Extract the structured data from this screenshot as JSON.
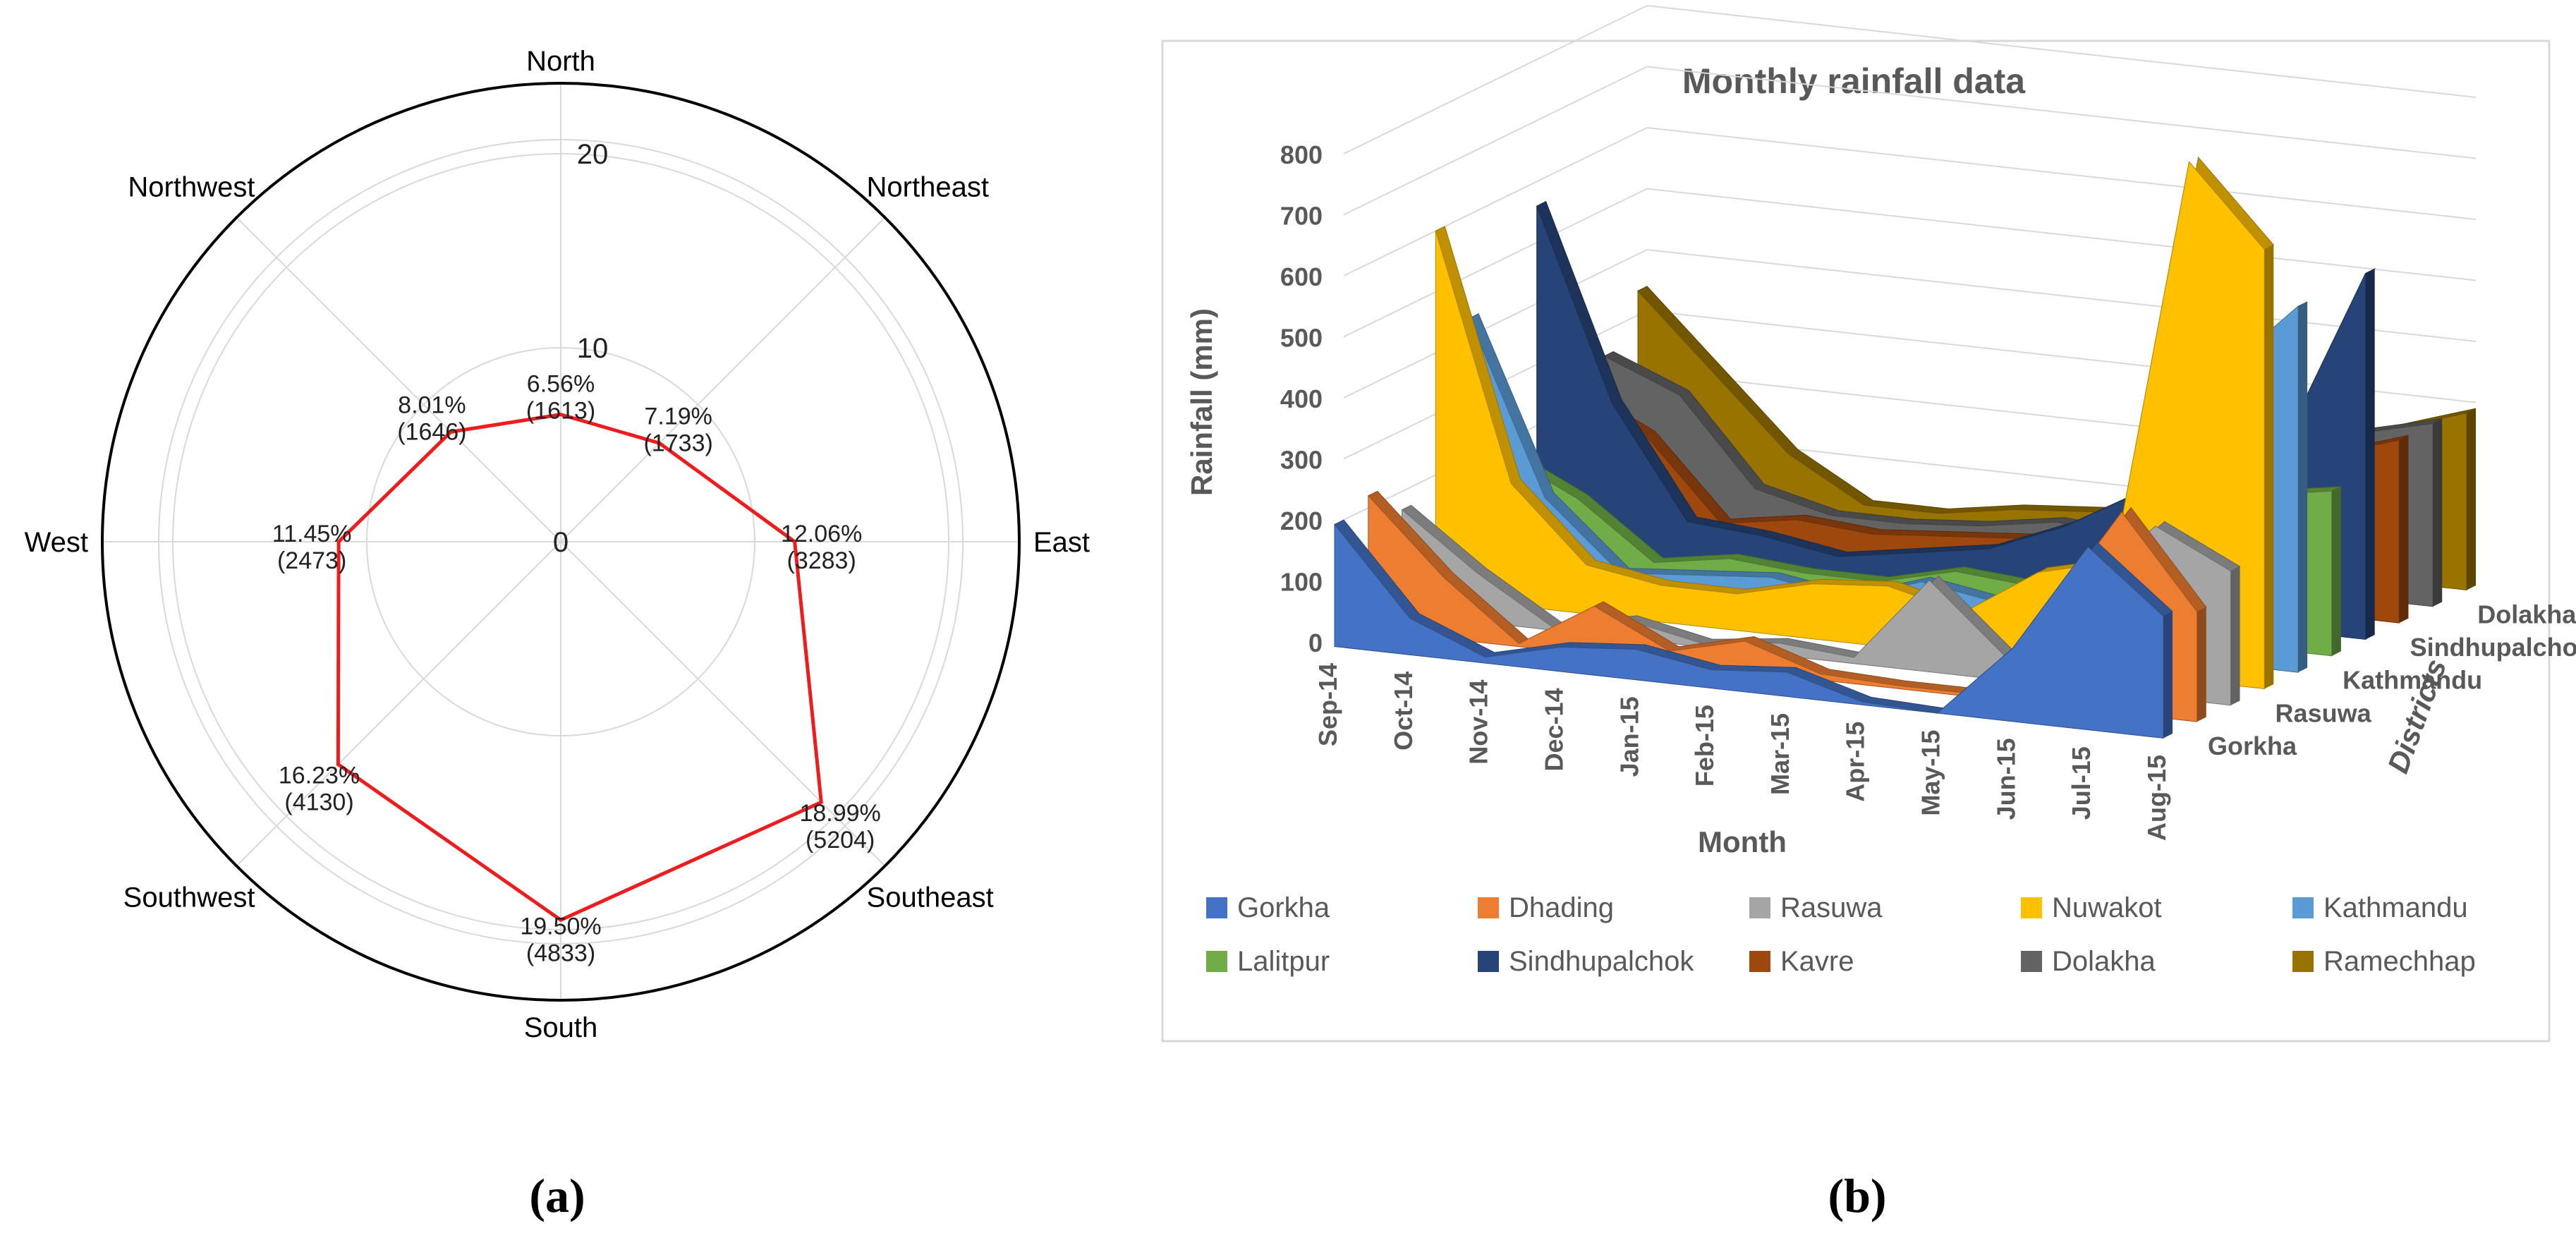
{
  "panel_a_label": "(a)",
  "panel_b_label": "(b)",
  "chart_data": [
    {
      "type": "radar",
      "title": "",
      "directions": [
        "North",
        "Northeast",
        "East",
        "Southeast",
        "South",
        "Southwest",
        "West",
        "Northwest"
      ],
      "values": [
        6.56,
        7.19,
        12.06,
        18.99,
        19.5,
        16.23,
        11.45,
        8.01
      ],
      "percent_labels": [
        "6.56%",
        "7.19%",
        "12.06%",
        "18.99%",
        "19.50%",
        "16.23%",
        "11.45%",
        "8.01%"
      ],
      "count_labels": [
        "(1613)",
        "(1733)",
        "(3283)",
        "(5204)",
        "(4833)",
        "(4130)",
        "(2473)",
        "(1646)"
      ],
      "radial_ticks": [
        0,
        10,
        20
      ],
      "r_max": 27,
      "series_color": "#ee1c1c",
      "grid": true
    },
    {
      "type": "area",
      "chart_style": "3d-area",
      "title": "Monthly rainfall data",
      "xlabel": "Month",
      "ylabel": "Rainfall (mm)",
      "zlabel": "Districts",
      "ylim": [
        0,
        800
      ],
      "y_ticks": [
        0,
        100,
        200,
        300,
        400,
        500,
        600,
        700,
        800
      ],
      "categories": [
        "Sep-14",
        "Oct-14",
        "Nov-14",
        "Dec-14",
        "Jan-15",
        "Feb-15",
        "Mar-15",
        "Apr-15",
        "May-15",
        "Jun-15",
        "Jul-15",
        "Aug-15"
      ],
      "depth_axis_labels": [
        "Gorkha",
        "Rasuwa",
        "Kathmandu",
        "Sindhupalchok",
        "Dolakha"
      ],
      "legend_position": "bottom",
      "series": [
        {
          "name": "Gorkha",
          "color": "#4472c4",
          "values": [
            200,
            60,
            10,
            40,
            50,
            30,
            40,
            5,
            0,
            120,
            300,
            200
          ]
        },
        {
          "name": "Dhading",
          "color": "#ed7d31",
          "values": [
            220,
            100,
            5,
            80,
            20,
            50,
            10,
            5,
            5,
            150,
            330,
            180
          ]
        },
        {
          "name": "Rasuwa",
          "color": "#a5a5a5",
          "values": [
            170,
            80,
            5,
            30,
            5,
            20,
            10,
            150,
            40,
            160,
            280,
            220
          ]
        },
        {
          "name": "Nuwakot",
          "color": "#ffc000",
          "values": [
            600,
            200,
            80,
            60,
            60,
            90,
            100,
            70,
            150,
            180,
            850,
            720
          ]
        },
        {
          "name": "Kathmandu",
          "color": "#5b9bd5",
          "values": [
            430,
            150,
            40,
            50,
            60,
            40,
            80,
            60,
            130,
            160,
            480,
            600
          ]
        },
        {
          "name": "Lalitpur",
          "color": "#70ad47",
          "values": [
            180,
            120,
            30,
            50,
            40,
            40,
            70,
            60,
            120,
            150,
            250,
            270
          ]
        },
        {
          "name": "Sindhupalchok",
          "color": "#264478",
          "values": [
            560,
            250,
            70,
            60,
            40,
            60,
            80,
            130,
            200,
            130,
            330,
            600
          ]
        },
        {
          "name": "Kavre",
          "color": "#9e480e",
          "values": [
            230,
            170,
            40,
            60,
            50,
            60,
            70,
            60,
            130,
            140,
            260,
            300
          ]
        },
        {
          "name": "Dolakha",
          "color": "#636363",
          "values": [
            260,
            210,
            70,
            40,
            40,
            50,
            70,
            60,
            100,
            150,
            270,
            300
          ]
        },
        {
          "name": "Ramechhap",
          "color": "#997300",
          "values": [
            340,
            220,
            100,
            30,
            30,
            50,
            60,
            70,
            110,
            130,
            250,
            290
          ]
        }
      ]
    }
  ]
}
